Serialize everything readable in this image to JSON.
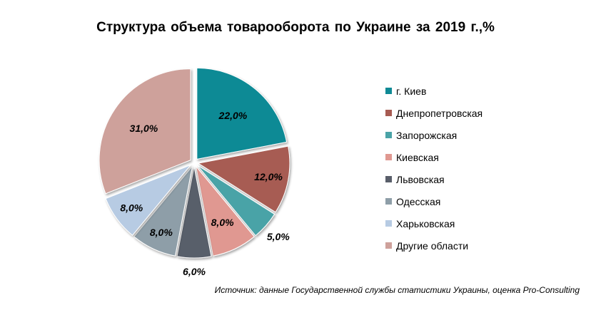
{
  "title": "Структура объема товарооборота по Украине за 2019 г.,%",
  "source": "Источник: данные Государственной службы статистики Украины, оценка Pro-Consulting",
  "chart_data": {
    "type": "pie",
    "title": "Структура объема товарооборота по Украине за 2019 г.,%",
    "legend_position": "right",
    "series": [
      {
        "name": "г. Киев",
        "value": 22.0,
        "label": "22,0%",
        "color": "#0f8a95"
      },
      {
        "name": "Днепропетровская",
        "value": 12.0,
        "label": "12,0%",
        "color": "#a75b52"
      },
      {
        "name": "Запорожская",
        "value": 5.0,
        "label": "5,0%",
        "color": "#4aa3a7"
      },
      {
        "name": "Киевская",
        "value": 8.0,
        "label": "8,0%",
        "color": "#e09891"
      },
      {
        "name": "Львовская",
        "value": 6.0,
        "label": "6,0%",
        "color": "#595e6a"
      },
      {
        "name": "Одесская",
        "value": 8.0,
        "label": "8,0%",
        "color": "#8e9ea8"
      },
      {
        "name": "Харьковская",
        "value": 8.0,
        "label": "8,0%",
        "color": "#b7cbe3"
      },
      {
        "name": "Другие области",
        "value": 31.0,
        "label": "31,0%",
        "color": "#cea19b"
      }
    ]
  }
}
